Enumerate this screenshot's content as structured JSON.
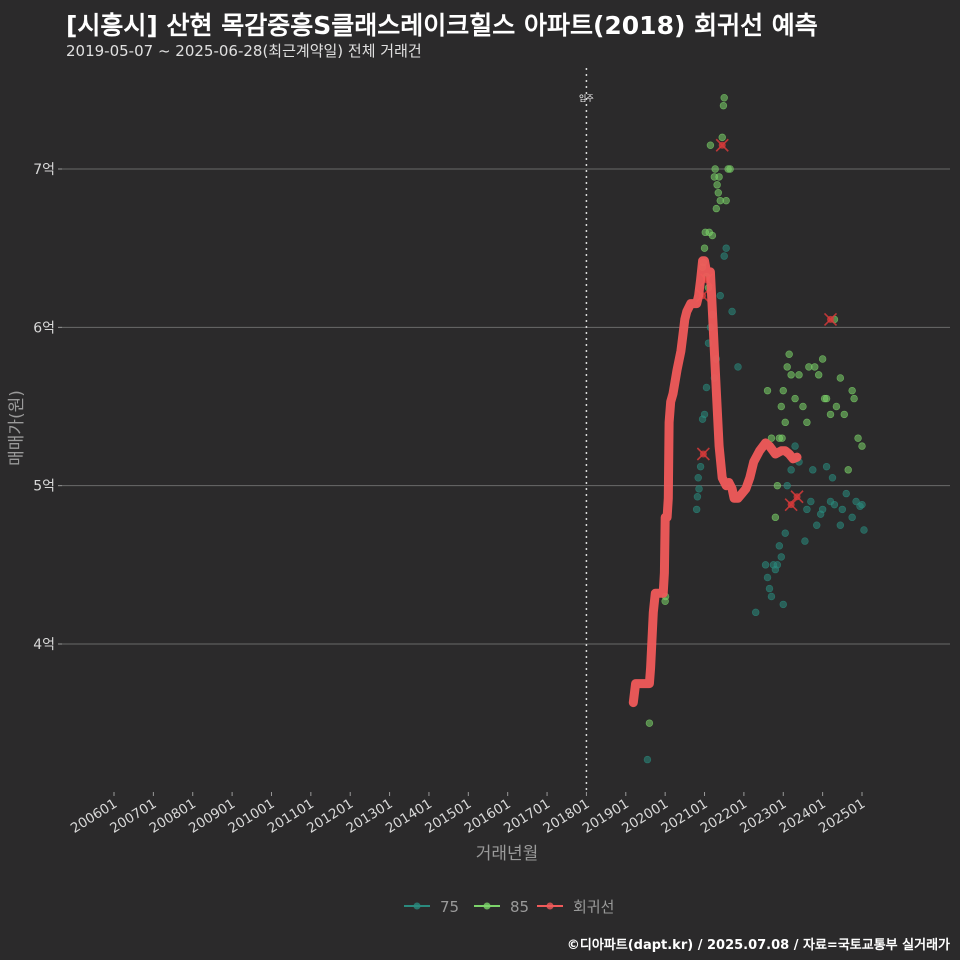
{
  "title": "[시흥시] 산현 목감중흥S클래스레이크힐스 아파트(2018) 회귀선 예측",
  "subtitle": "2019-05-07 ~ 2025-06-28(최근계약일) 전체 거래건",
  "credit": "©디아파트(dapt.kr) / 2025.07.08 / 자료=국토교통부 실거래가",
  "colors": {
    "bg": "#2b2a2b",
    "grid": "#6a6a6a",
    "s75": "#2a8a7e",
    "s85": "#7cd36a",
    "reg": "#f05a5a",
    "outlier": "#d63a3a"
  },
  "chart_data": {
    "type": "scatter",
    "title": "[시흥시] 산현 목감중흥S클래스레이크힐스 아파트(2018) 회귀선 예측",
    "xlabel": "거래년월",
    "ylabel": "매매가(원)",
    "xlim": [
      2005.1,
      2027.2
    ],
    "ylim": [
      3.1,
      7.5
    ],
    "x_ticks": [
      {
        "v": 2006,
        "label": "200601"
      },
      {
        "v": 2007,
        "label": "200701"
      },
      {
        "v": 2008,
        "label": "200801"
      },
      {
        "v": 2009,
        "label": "200901"
      },
      {
        "v": 2010,
        "label": "201001"
      },
      {
        "v": 2011,
        "label": "201101"
      },
      {
        "v": 2012,
        "label": "201201"
      },
      {
        "v": 2013,
        "label": "201301"
      },
      {
        "v": 2014,
        "label": "201401"
      },
      {
        "v": 2015,
        "label": "201501"
      },
      {
        "v": 2016,
        "label": "201601"
      },
      {
        "v": 2017,
        "label": "201701"
      },
      {
        "v": 2018,
        "label": "201801"
      },
      {
        "v": 2019,
        "label": "201901"
      },
      {
        "v": 2020,
        "label": "202001"
      },
      {
        "v": 2021,
        "label": "202101"
      },
      {
        "v": 2022,
        "label": "202201"
      },
      {
        "v": 2023,
        "label": "202301"
      },
      {
        "v": 2024,
        "label": "202401"
      },
      {
        "v": 2025,
        "label": "202501"
      }
    ],
    "y_ticks": [
      {
        "v": 4,
        "label": "4억"
      },
      {
        "v": 5,
        "label": "5억"
      },
      {
        "v": 6,
        "label": "6억"
      },
      {
        "v": 7,
        "label": "7억"
      }
    ],
    "move_in": {
      "x": 2018.0,
      "label": "입주"
    },
    "legend": [
      {
        "key": "s75",
        "label": "75"
      },
      {
        "key": "s85",
        "label": "85"
      },
      {
        "key": "reg",
        "label": "회귀선"
      }
    ],
    "series": [
      {
        "name": "75",
        "key": "s75",
        "points": [
          [
            2019.55,
            3.27
          ],
          [
            2020.8,
            4.85
          ],
          [
            2020.82,
            4.93
          ],
          [
            2020.84,
            5.05
          ],
          [
            2020.86,
            4.98
          ],
          [
            2020.9,
            5.12
          ],
          [
            2020.95,
            5.42
          ],
          [
            2021.0,
            5.45
          ],
          [
            2021.05,
            5.62
          ],
          [
            2021.1,
            5.9
          ],
          [
            2021.15,
            6.0
          ],
          [
            2021.2,
            6.08
          ],
          [
            2021.25,
            5.68
          ],
          [
            2021.3,
            5.8
          ],
          [
            2021.4,
            6.2
          ],
          [
            2021.5,
            6.45
          ],
          [
            2021.55,
            6.5
          ],
          [
            2021.7,
            6.1
          ],
          [
            2021.85,
            5.75
          ],
          [
            2022.3,
            4.2
          ],
          [
            2022.55,
            4.5
          ],
          [
            2022.6,
            4.42
          ],
          [
            2022.65,
            4.35
          ],
          [
            2022.7,
            4.3
          ],
          [
            2022.75,
            4.5
          ],
          [
            2022.8,
            4.47
          ],
          [
            2022.85,
            4.5
          ],
          [
            2022.9,
            4.62
          ],
          [
            2022.95,
            4.55
          ],
          [
            2023.0,
            4.25
          ],
          [
            2023.05,
            4.7
          ],
          [
            2023.1,
            5.0
          ],
          [
            2023.2,
            5.1
          ],
          [
            2023.3,
            5.25
          ],
          [
            2023.4,
            5.15
          ],
          [
            2023.55,
            4.65
          ],
          [
            2023.6,
            4.85
          ],
          [
            2023.7,
            4.9
          ],
          [
            2023.75,
            5.1
          ],
          [
            2023.85,
            4.75
          ],
          [
            2023.95,
            4.82
          ],
          [
            2024.0,
            4.85
          ],
          [
            2024.1,
            5.12
          ],
          [
            2024.2,
            4.9
          ],
          [
            2024.25,
            5.05
          ],
          [
            2024.3,
            4.88
          ],
          [
            2024.45,
            4.75
          ],
          [
            2024.5,
            4.85
          ],
          [
            2024.6,
            4.95
          ],
          [
            2024.75,
            4.8
          ],
          [
            2024.85,
            4.9
          ],
          [
            2025.0,
            4.88
          ],
          [
            2025.05,
            4.72
          ],
          [
            2024.95,
            4.87
          ]
        ]
      },
      {
        "name": "85",
        "key": "s85",
        "points": [
          [
            2019.6,
            3.5
          ],
          [
            2020.0,
            4.27
          ],
          [
            2020.01,
            4.3
          ],
          [
            2020.95,
            6.38
          ],
          [
            2020.97,
            6.41
          ],
          [
            2021.0,
            6.5
          ],
          [
            2021.02,
            6.6
          ],
          [
            2021.05,
            6.32
          ],
          [
            2021.1,
            6.25
          ],
          [
            2021.12,
            6.6
          ],
          [
            2021.15,
            7.15
          ],
          [
            2021.2,
            6.58
          ],
          [
            2021.25,
            6.95
          ],
          [
            2021.27,
            7.0
          ],
          [
            2021.3,
            6.75
          ],
          [
            2021.32,
            6.9
          ],
          [
            2021.35,
            6.85
          ],
          [
            2021.37,
            6.95
          ],
          [
            2021.4,
            6.8
          ],
          [
            2021.45,
            7.2
          ],
          [
            2021.48,
            7.4
          ],
          [
            2021.5,
            7.45
          ],
          [
            2021.55,
            6.8
          ],
          [
            2021.6,
            7.0
          ],
          [
            2021.65,
            7.0
          ],
          [
            2022.6,
            5.6
          ],
          [
            2022.7,
            5.3
          ],
          [
            2022.8,
            4.8
          ],
          [
            2022.85,
            5.0
          ],
          [
            2022.9,
            5.3
          ],
          [
            2022.95,
            5.5
          ],
          [
            2022.97,
            5.3
          ],
          [
            2023.0,
            5.6
          ],
          [
            2023.05,
            5.4
          ],
          [
            2023.1,
            5.75
          ],
          [
            2023.15,
            5.83
          ],
          [
            2023.2,
            5.7
          ],
          [
            2023.3,
            5.55
          ],
          [
            2023.4,
            5.7
          ],
          [
            2023.5,
            5.5
          ],
          [
            2023.6,
            5.4
          ],
          [
            2023.65,
            5.75
          ],
          [
            2023.8,
            5.75
          ],
          [
            2023.9,
            5.7
          ],
          [
            2024.0,
            5.8
          ],
          [
            2024.05,
            5.55
          ],
          [
            2024.1,
            5.55
          ],
          [
            2024.2,
            5.45
          ],
          [
            2024.3,
            6.05
          ],
          [
            2024.35,
            5.5
          ],
          [
            2024.45,
            5.68
          ],
          [
            2024.55,
            5.45
          ],
          [
            2024.65,
            5.1
          ],
          [
            2024.75,
            5.6
          ],
          [
            2024.8,
            5.55
          ],
          [
            2024.9,
            5.3
          ],
          [
            2025.0,
            5.25
          ]
        ]
      },
      {
        "name": "회귀선",
        "key": "reg",
        "points": [
          [
            2019.19,
            3.63
          ],
          [
            2019.25,
            3.75
          ],
          [
            2019.35,
            3.75
          ],
          [
            2019.45,
            3.75
          ],
          [
            2019.6,
            3.75
          ],
          [
            2019.63,
            3.85
          ],
          [
            2019.7,
            4.2
          ],
          [
            2019.75,
            4.32
          ],
          [
            2019.85,
            4.32
          ],
          [
            2019.95,
            4.32
          ],
          [
            2019.98,
            4.45
          ],
          [
            2020.0,
            4.8
          ],
          [
            2020.05,
            4.8
          ],
          [
            2020.08,
            4.92
          ],
          [
            2020.1,
            5.4
          ],
          [
            2020.14,
            5.53
          ],
          [
            2020.2,
            5.58
          ],
          [
            2020.3,
            5.73
          ],
          [
            2020.4,
            5.85
          ],
          [
            2020.45,
            5.95
          ],
          [
            2020.5,
            6.05
          ],
          [
            2020.55,
            6.1
          ],
          [
            2020.65,
            6.15
          ],
          [
            2020.8,
            6.15
          ],
          [
            2020.85,
            6.2
          ],
          [
            2020.9,
            6.3
          ],
          [
            2020.95,
            6.42
          ],
          [
            2021.0,
            6.42
          ],
          [
            2021.05,
            6.35
          ],
          [
            2021.15,
            6.35
          ],
          [
            2021.22,
            6.0
          ],
          [
            2021.3,
            5.6
          ],
          [
            2021.37,
            5.25
          ],
          [
            2021.45,
            5.05
          ],
          [
            2021.55,
            5.0
          ],
          [
            2021.62,
            5.02
          ],
          [
            2021.7,
            4.98
          ],
          [
            2021.75,
            4.92
          ],
          [
            2021.85,
            4.92
          ],
          [
            2021.95,
            4.95
          ],
          [
            2022.05,
            4.98
          ],
          [
            2022.15,
            5.05
          ],
          [
            2022.25,
            5.15
          ],
          [
            2022.4,
            5.22
          ],
          [
            2022.55,
            5.27
          ],
          [
            2022.65,
            5.25
          ],
          [
            2022.8,
            5.2
          ],
          [
            2022.95,
            5.22
          ],
          [
            2023.05,
            5.22
          ],
          [
            2023.15,
            5.2
          ],
          [
            2023.25,
            5.17
          ],
          [
            2023.35,
            5.18
          ]
        ]
      }
    ],
    "outliers": [
      [
        2020.95,
        6.2
      ],
      [
        2021.05,
        6.3
      ],
      [
        2020.97,
        5.2
      ],
      [
        2021.45,
        7.15
      ],
      [
        2024.2,
        6.05
      ],
      [
        2023.35,
        4.93
      ],
      [
        2023.2,
        4.88
      ]
    ]
  }
}
